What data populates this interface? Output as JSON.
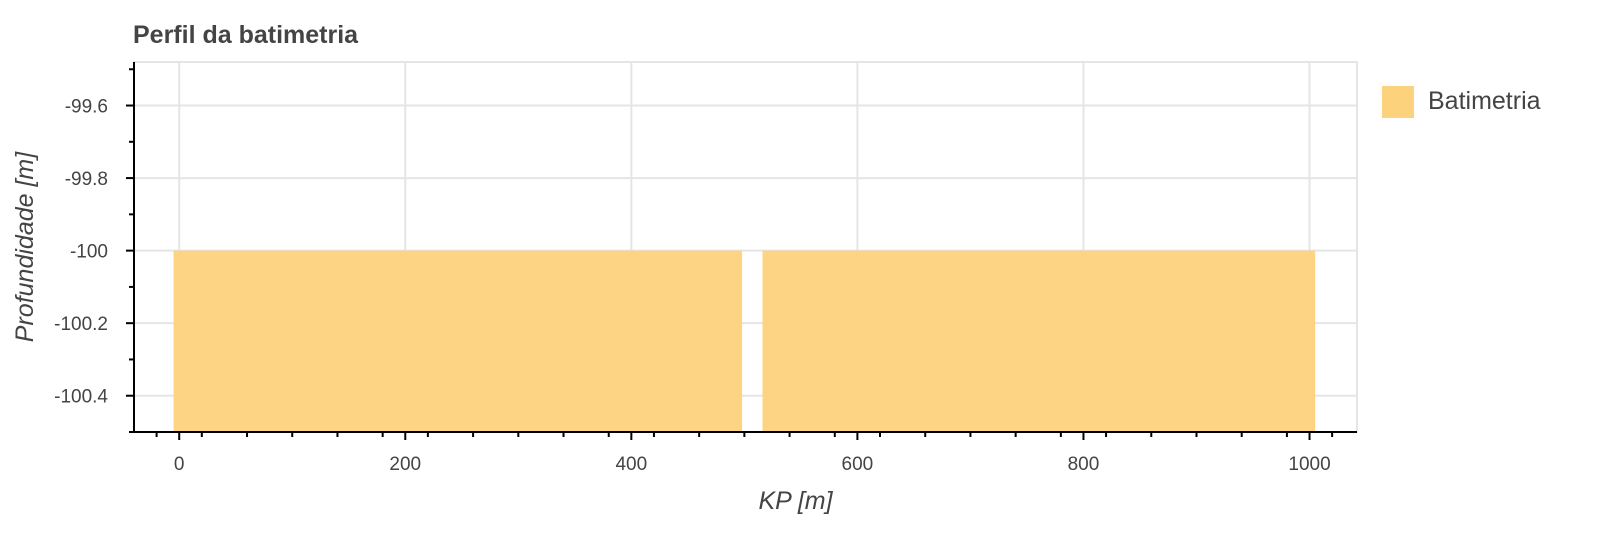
{
  "chart_data": {
    "type": "area",
    "title": "Perfil da batimetria",
    "xlabel": "KP [m]",
    "ylabel": "Profundidade [m]",
    "xlim": [
      -40,
      1042
    ],
    "ylim": [
      -100.5,
      -99.48
    ],
    "x_ticks": [
      0,
      200,
      400,
      600,
      800,
      1000
    ],
    "x_tick_labels": [
      "0",
      "200",
      "400",
      "600",
      "800",
      "1000"
    ],
    "y_ticks": [
      -99.6,
      -99.8,
      -100,
      -100.2,
      -100.4
    ],
    "y_tick_labels": [
      "-99.6",
      "-99.8",
      "-100",
      "-100.2",
      "-100.4"
    ],
    "grid": true,
    "legend_position": "right",
    "series": [
      {
        "name": "Batimetria",
        "color": "#fdd27d",
        "segments": [
          {
            "x": [
              -5,
              498
            ],
            "y": [
              -100,
              -100
            ]
          },
          {
            "x": [
              516,
              1005
            ],
            "y": [
              -100,
              -100
            ]
          }
        ]
      }
    ]
  }
}
